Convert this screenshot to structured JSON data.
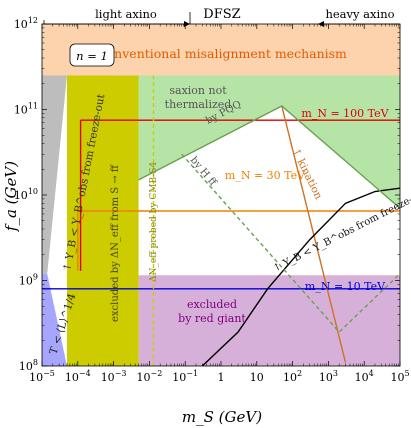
{
  "chart_data": {
    "type": "line",
    "title": "",
    "xlabel": "m_S (GeV)",
    "ylabel": "f_a (GeV)",
    "xscale": "log",
    "yscale": "log",
    "xlim": [
      1e-05,
      100000.0
    ],
    "ylim": [
      100000000.0,
      1000000000000.0
    ],
    "x_ticks": [
      "10^-5",
      "10^-4",
      "10^-3",
      "10^-2",
      "10^-1",
      "1",
      "10",
      "10^2",
      "10^3",
      "10^4",
      "10^5"
    ],
    "y_ticks": [
      "10^8",
      "10^9",
      "10^10",
      "10^11",
      "10^12"
    ],
    "top_labels": {
      "center": "DFSZ",
      "left": "light axino",
      "right": "heavy axino"
    },
    "top_arrow_split_x": 0.1,
    "model_label": "n = 1",
    "regions": [
      {
        "name": "Conventional misalignment mechanism",
        "x": [
          1e-05,
          100000.0
        ],
        "y": [
          250000000000.0,
          1000000000000.0
        ],
        "color": "#fcd3ad",
        "text_color": "#e25a00"
      },
      {
        "name": "saxion not thermalized",
        "color": "#b6e4a6",
        "text_color": "#555555"
      },
      {
        "name": "excluded by red giant",
        "x": [
          0.005,
          100000.0
        ],
        "y": [
          100000000.0,
          1150000000.0
        ],
        "color": "#d6b0d8",
        "text_color": "#800080"
      },
      {
        "name": "excluded by ΔN_eff from S → ff",
        "x": [
          5e-05,
          0.005
        ],
        "y": [
          100000000.0,
          250000000000.0
        ],
        "color": "#cccc00",
        "text_color": "#444400"
      },
      {
        "name": "freeze-out gray region",
        "color": "#bdbdbd"
      },
      {
        "name": "blue region",
        "color": "#a6a6ff"
      }
    ],
    "region_labels": {
      "freeze_out": "↑ Y_B < Y_B^obs from freeze-out",
      "neff": "excluded by ΔN_eff from S → ff",
      "cmbs4": "ΔN_eff probed by CMB-S4",
      "saxion": [
        "saxion not",
        "thermalized"
      ],
      "pqq": "by PQQ",
      "ff": "by H ff",
      "kination": "↑ kination",
      "freeze_in": "↑ Y_B < Y_B^obs from freeze-in",
      "red_giant": [
        "excluded",
        "by red giant"
      ],
      "blue": "T < ⟨L⟩^1/4"
    },
    "series": [
      {
        "name": "m_N = 100 TeV",
        "color": "#e00000",
        "x": [
          0.00012,
          100000.0
        ],
        "y": [
          75000000000.0,
          75000000000.0
        ]
      },
      {
        "name": "m_N = 30 TeV",
        "color": "#f08000",
        "x": [
          0.0001,
          100000.0
        ],
        "y": [
          6500000000.0,
          6500000000.0
        ]
      },
      {
        "name": "m_N = 10 TeV",
        "color": "#0000dd",
        "x": [
          1e-05,
          100000.0
        ],
        "y": [
          800000000.0,
          800000000.0
        ]
      },
      {
        "name": "kination",
        "color": "#d07020",
        "x": [
          50,
          3000.0
        ],
        "y": [
          110000000000.0,
          110000000.0
        ]
      },
      {
        "name": "freeze-in",
        "color": "#000000",
        "x": [
          0.3,
          3,
          20,
          300,
          3000.0,
          20000.0,
          100000.0
        ],
        "y": [
          100000000.0,
          250000000.0,
          800000000.0,
          3000000000.0,
          8000000000.0,
          11000000000.0,
          12000000000.0
        ]
      },
      {
        "name": "PQQ",
        "color": "#6aa050",
        "x": [
          0.005,
          50,
          100000.0
        ],
        "y": [
          15000000000.0,
          110000000000.0,
          7000000000.0
        ]
      },
      {
        "name": "H ff",
        "color": "#6aa050",
        "dash": true,
        "x": [
          0.08,
          2000.0,
          100000.0
        ],
        "y": [
          30000000000.0,
          250000000.0,
          1200000000.0
        ]
      },
      {
        "name": "m_N = 100 TeV vertical",
        "color": "#e00000",
        "x": [
          0.00012,
          0.00012
        ],
        "y": [
          1300000000.0,
          75000000000.0
        ]
      },
      {
        "name": "m_N = 30 TeV vertical",
        "color": "#f08000",
        "x": [
          0.0001,
          0.0001
        ],
        "y": [
          1300000000.0,
          6500000000.0
        ]
      },
      {
        "name": "CMB-S4",
        "color": "#cccc00",
        "dash": true,
        "x": [
          0.013,
          0.013
        ],
        "y": [
          100000000.0,
          250000000000.0
        ]
      }
    ]
  }
}
